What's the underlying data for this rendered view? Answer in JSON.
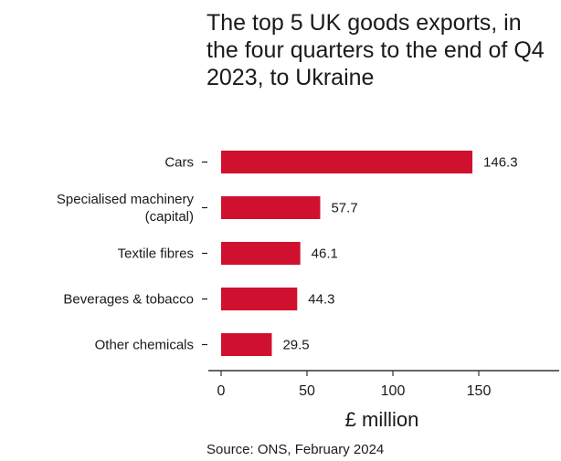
{
  "chart_data": {
    "type": "bar",
    "orientation": "horizontal",
    "title": "The top 5 UK goods exports, in the four quarters to the end of Q4 2023, to Ukraine",
    "categories": [
      "Cars",
      "Specialised machinery (capital)",
      "Textile fibres",
      "Beverages & tobacco",
      "Other chemicals"
    ],
    "category_lines": [
      [
        "Cars"
      ],
      [
        "Specialised machinery",
        "(capital)"
      ],
      [
        "Textile fibres"
      ],
      [
        "Beverages & tobacco"
      ],
      [
        "Other chemicals"
      ]
    ],
    "values": [
      146.3,
      57.7,
      46.1,
      44.3,
      29.5
    ],
    "value_labels": [
      "146.3",
      "57.7",
      "46.1",
      "44.3",
      "29.5"
    ],
    "xlabel": "£ million",
    "xticks": [
      0,
      50,
      100,
      150
    ],
    "xlim": [
      0,
      195
    ],
    "grid": false,
    "bar_color": "#d0102f",
    "source": "Source: ONS, February 2024"
  }
}
